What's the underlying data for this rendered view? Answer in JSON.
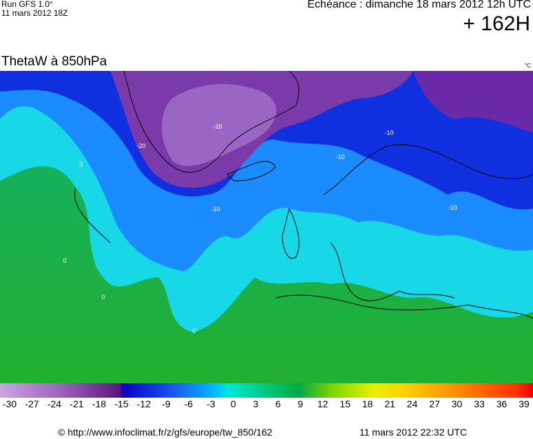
{
  "header": {
    "run": "Run GFS 1.0°",
    "run_date": "11 mars 2012 18Z",
    "valid_time": "Echéance : dimanche 18 mars 2012 12h UTC",
    "lead": "+ 162H"
  },
  "map": {
    "title": "ThetaW à 850hPa",
    "unit": "°C",
    "contour_labels": [
      "-20",
      "-20",
      "-10",
      "-10",
      "-10",
      "-10",
      "0",
      "0",
      "0",
      "0"
    ]
  },
  "scale": {
    "ticks": [
      -30,
      -27,
      -24,
      -21,
      -18,
      -15,
      -12,
      -9,
      -6,
      -3,
      0,
      3,
      6,
      9,
      12,
      15,
      18,
      21,
      24,
      27,
      30,
      33,
      36,
      39
    ]
  },
  "footer": {
    "url": "© http://www.infoclimat.fr/z/gfs/europe/tw_850/162",
    "timestamp": "11 mars 2012 22:32 UTC"
  }
}
